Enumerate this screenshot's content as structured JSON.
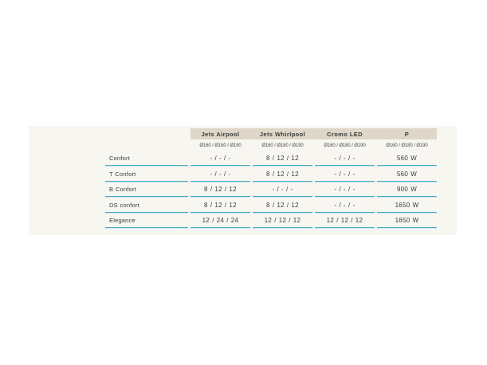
{
  "colors": {
    "panel-bg": "#f8f6f1",
    "header-bg": "#ded6c7",
    "line-top": "#4aacbe",
    "line-glow": "#c9e7ed",
    "text": "#3b3b3a"
  },
  "table": {
    "columns": [
      {
        "label": "Jets Airpool",
        "sizes": "Ø160 / Ø180 / Ø190"
      },
      {
        "label": "Jets Whirlpool",
        "sizes": "Ø160 / Ø180 / Ø190"
      },
      {
        "label": "Cromo LED",
        "sizes": "Ø160 / Ø180 / Ø190"
      },
      {
        "label": "P",
        "sizes": "Ø160 / Ø180 / Ø190"
      }
    ],
    "rows": [
      {
        "label": "Confort",
        "values": [
          "- / - / -",
          "8 / 12 / 12",
          "- / - / -",
          "560 W"
        ]
      },
      {
        "label": "T Confort",
        "values": [
          "- / - / -",
          "8 / 12 / 12",
          "- / - / -",
          "560 W"
        ]
      },
      {
        "label": "B Confort",
        "values": [
          "8 / 12 / 12",
          "- / - / -",
          "- / - / -",
          "900 W"
        ]
      },
      {
        "label": "DS confort",
        "values": [
          "8 / 12 / 12",
          "8 / 12 / 12",
          "- / - / -",
          "1650 W"
        ]
      },
      {
        "label": "Elegance",
        "values": [
          "12 / 24 / 24",
          "12 / 12 / 12",
          "12 / 12 / 12",
          "1650 W"
        ]
      }
    ]
  }
}
